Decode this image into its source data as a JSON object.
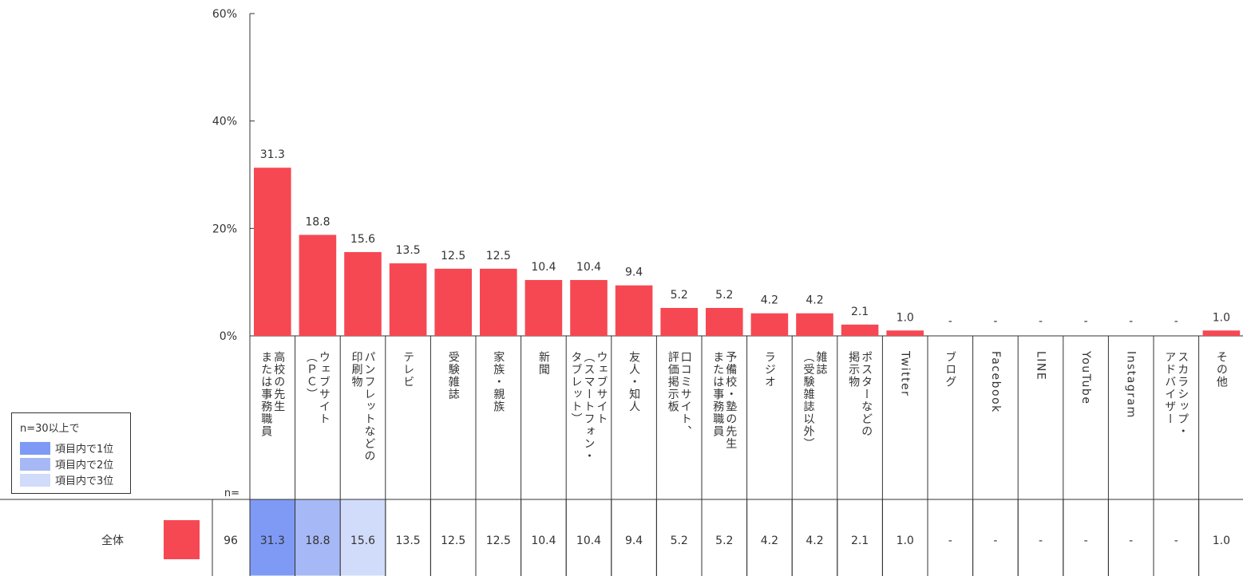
{
  "chart_data": {
    "type": "bar",
    "ylim": [
      0,
      60
    ],
    "y_ticks": [
      "0%",
      "20%",
      "40%",
      "60%"
    ],
    "y_tick_values": [
      0,
      20,
      40,
      60
    ],
    "categories": [
      [
        "高校の先生",
        "または事務職員"
      ],
      [
        "ウェブサイト",
        "（ＰＣ）"
      ],
      [
        "パンフレットなどの",
        "印刷物"
      ],
      [
        "テレビ"
      ],
      [
        "受験雑誌"
      ],
      [
        "家族・親族"
      ],
      [
        "新聞"
      ],
      [
        "ウェブサイト",
        "（スマートフォン・",
        "タブレット）"
      ],
      [
        "友人・知人"
      ],
      [
        "口コミサイト、",
        "評価掲示板"
      ],
      [
        "予備校・塾の先生",
        "または事務職員"
      ],
      [
        "ラジオ"
      ],
      [
        "雑誌",
        "（受験雑誌以外）"
      ],
      [
        "ポスターなどの",
        "掲示物"
      ],
      [
        "Twitter"
      ],
      [
        "ブログ"
      ],
      [
        "Facebook"
      ],
      [
        "LINE"
      ],
      [
        "YouTube"
      ],
      [
        "Instagram"
      ],
      [
        "スカラシップ・",
        "アドバイザー"
      ],
      [
        "その他"
      ]
    ],
    "series": [
      {
        "name": "全体",
        "n": "96",
        "color": "#f64853",
        "values": [
          31.3,
          18.8,
          15.6,
          13.5,
          12.5,
          12.5,
          10.4,
          10.4,
          9.4,
          5.2,
          5.2,
          4.2,
          4.2,
          2.1,
          1.0,
          null,
          null,
          null,
          null,
          null,
          null,
          1.0
        ],
        "labels": [
          "31.3",
          "18.8",
          "15.6",
          "13.5",
          "12.5",
          "12.5",
          "10.4",
          "10.4",
          "9.4",
          "5.2",
          "5.2",
          "4.2",
          "4.2",
          "2.1",
          "1.0",
          "-",
          "-",
          "-",
          "-",
          "-",
          "-",
          "1.0"
        ],
        "rank_highlight": [
          1,
          2,
          3,
          0,
          0,
          0,
          0,
          0,
          0,
          0,
          0,
          0,
          0,
          0,
          0,
          0,
          0,
          0,
          0,
          0,
          0,
          0
        ]
      }
    ],
    "n_label": "n=",
    "rank_colors": [
      "#ffffff",
      "#7f9af5",
      "#a6b9f6",
      "#d1dcfb"
    ],
    "legend": {
      "title": "n=30以上で",
      "items": [
        "項目内で1位",
        "項目内で2位",
        "項目内で3位"
      ]
    },
    "grid": false
  }
}
